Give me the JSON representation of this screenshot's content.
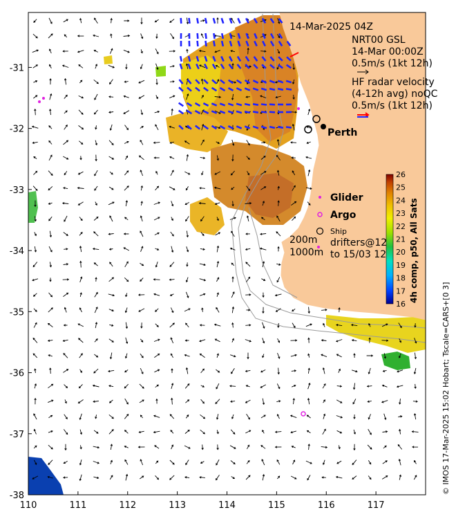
{
  "map": {
    "lon_range": [
      110,
      118
    ],
    "lat_range": [
      -38,
      -30.1
    ],
    "x_ticks": [
      "110",
      "111",
      "112",
      "113",
      "114",
      "115",
      "116",
      "117"
    ],
    "y_ticks": [
      "-31",
      "-32",
      "-33",
      "-34",
      "-35",
      "-36",
      "-37",
      "-38"
    ],
    "land_color": "#f9c99a",
    "arrow_color": "#000000",
    "hf_radar_color": "#1f23ff"
  },
  "legend": {
    "timestamp": "14-Mar-2025 04Z",
    "nrt_line1": "NRT00 GSL",
    "nrt_line2": "14-Mar 00:00Z",
    "nrt_scale": "0.5m/s (1kt 12h)",
    "hf_line1": "HF radar velocity",
    "hf_line2": "(4-12h avg) noQC",
    "hf_scale": "0.5m/s (1kt 12h)",
    "city": "Perth",
    "glider": "Glider",
    "argo": "Argo",
    "ship": "Ship",
    "drifters_line1": "drifters@12",
    "drifters_line2": "to 15/03 12",
    "contour_200": "200m",
    "contour_1000": "1000m"
  },
  "colorbar": {
    "title": "4h comp, p50, All Sats",
    "min": 16,
    "max": 26,
    "ticks": [
      "16",
      "17",
      "18",
      "19",
      "20",
      "21",
      "22",
      "23",
      "24",
      "25",
      "26"
    ]
  },
  "credit": "© IMOS 17-Mar-2025 15:02 Hobart; Tscale=CARS+[0 3]"
}
